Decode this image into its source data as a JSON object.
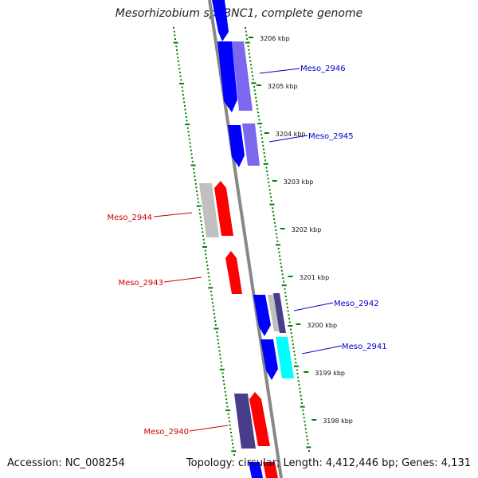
{
  "title": "Mesorhizobium sp. BNC1, complete genome",
  "footer": {
    "accession": "Accession: NC_008254",
    "topology": "Topology: circular; Length: 4,412,446 bp; Genes: 4,131"
  },
  "ticks": [
    {
      "label": "3206 kbp"
    },
    {
      "label": "3205 kbp"
    },
    {
      "label": "3204 kbp"
    },
    {
      "label": "3203 kbp"
    },
    {
      "label": "3202 kbp"
    },
    {
      "label": "3201 kbp"
    },
    {
      "label": "3200 kbp"
    },
    {
      "label": "3199 kbp"
    },
    {
      "label": "3198 kbp"
    }
  ],
  "gene_labels": [
    {
      "name": "Meso_2946",
      "color": "#0000cc"
    },
    {
      "name": "Meso_2945",
      "color": "#0000cc"
    },
    {
      "name": "Meso_2944",
      "color": "#cc0000"
    },
    {
      "name": "Meso_2943",
      "color": "#cc0000"
    },
    {
      "name": "Meso_2942",
      "color": "#0000cc"
    },
    {
      "name": "Meso_2941",
      "color": "#0000cc"
    },
    {
      "name": "Meso_2940",
      "color": "#cc0000"
    }
  ],
  "colors": {
    "forward": "#ff0000",
    "reverse": "#0000ff",
    "light_blue": "#7b68ee",
    "dark_blue": "#483d8b",
    "grey": "#c0c0c0",
    "cyan": "#00ffff",
    "gc_track": "#008000",
    "backbone": "#888888"
  }
}
